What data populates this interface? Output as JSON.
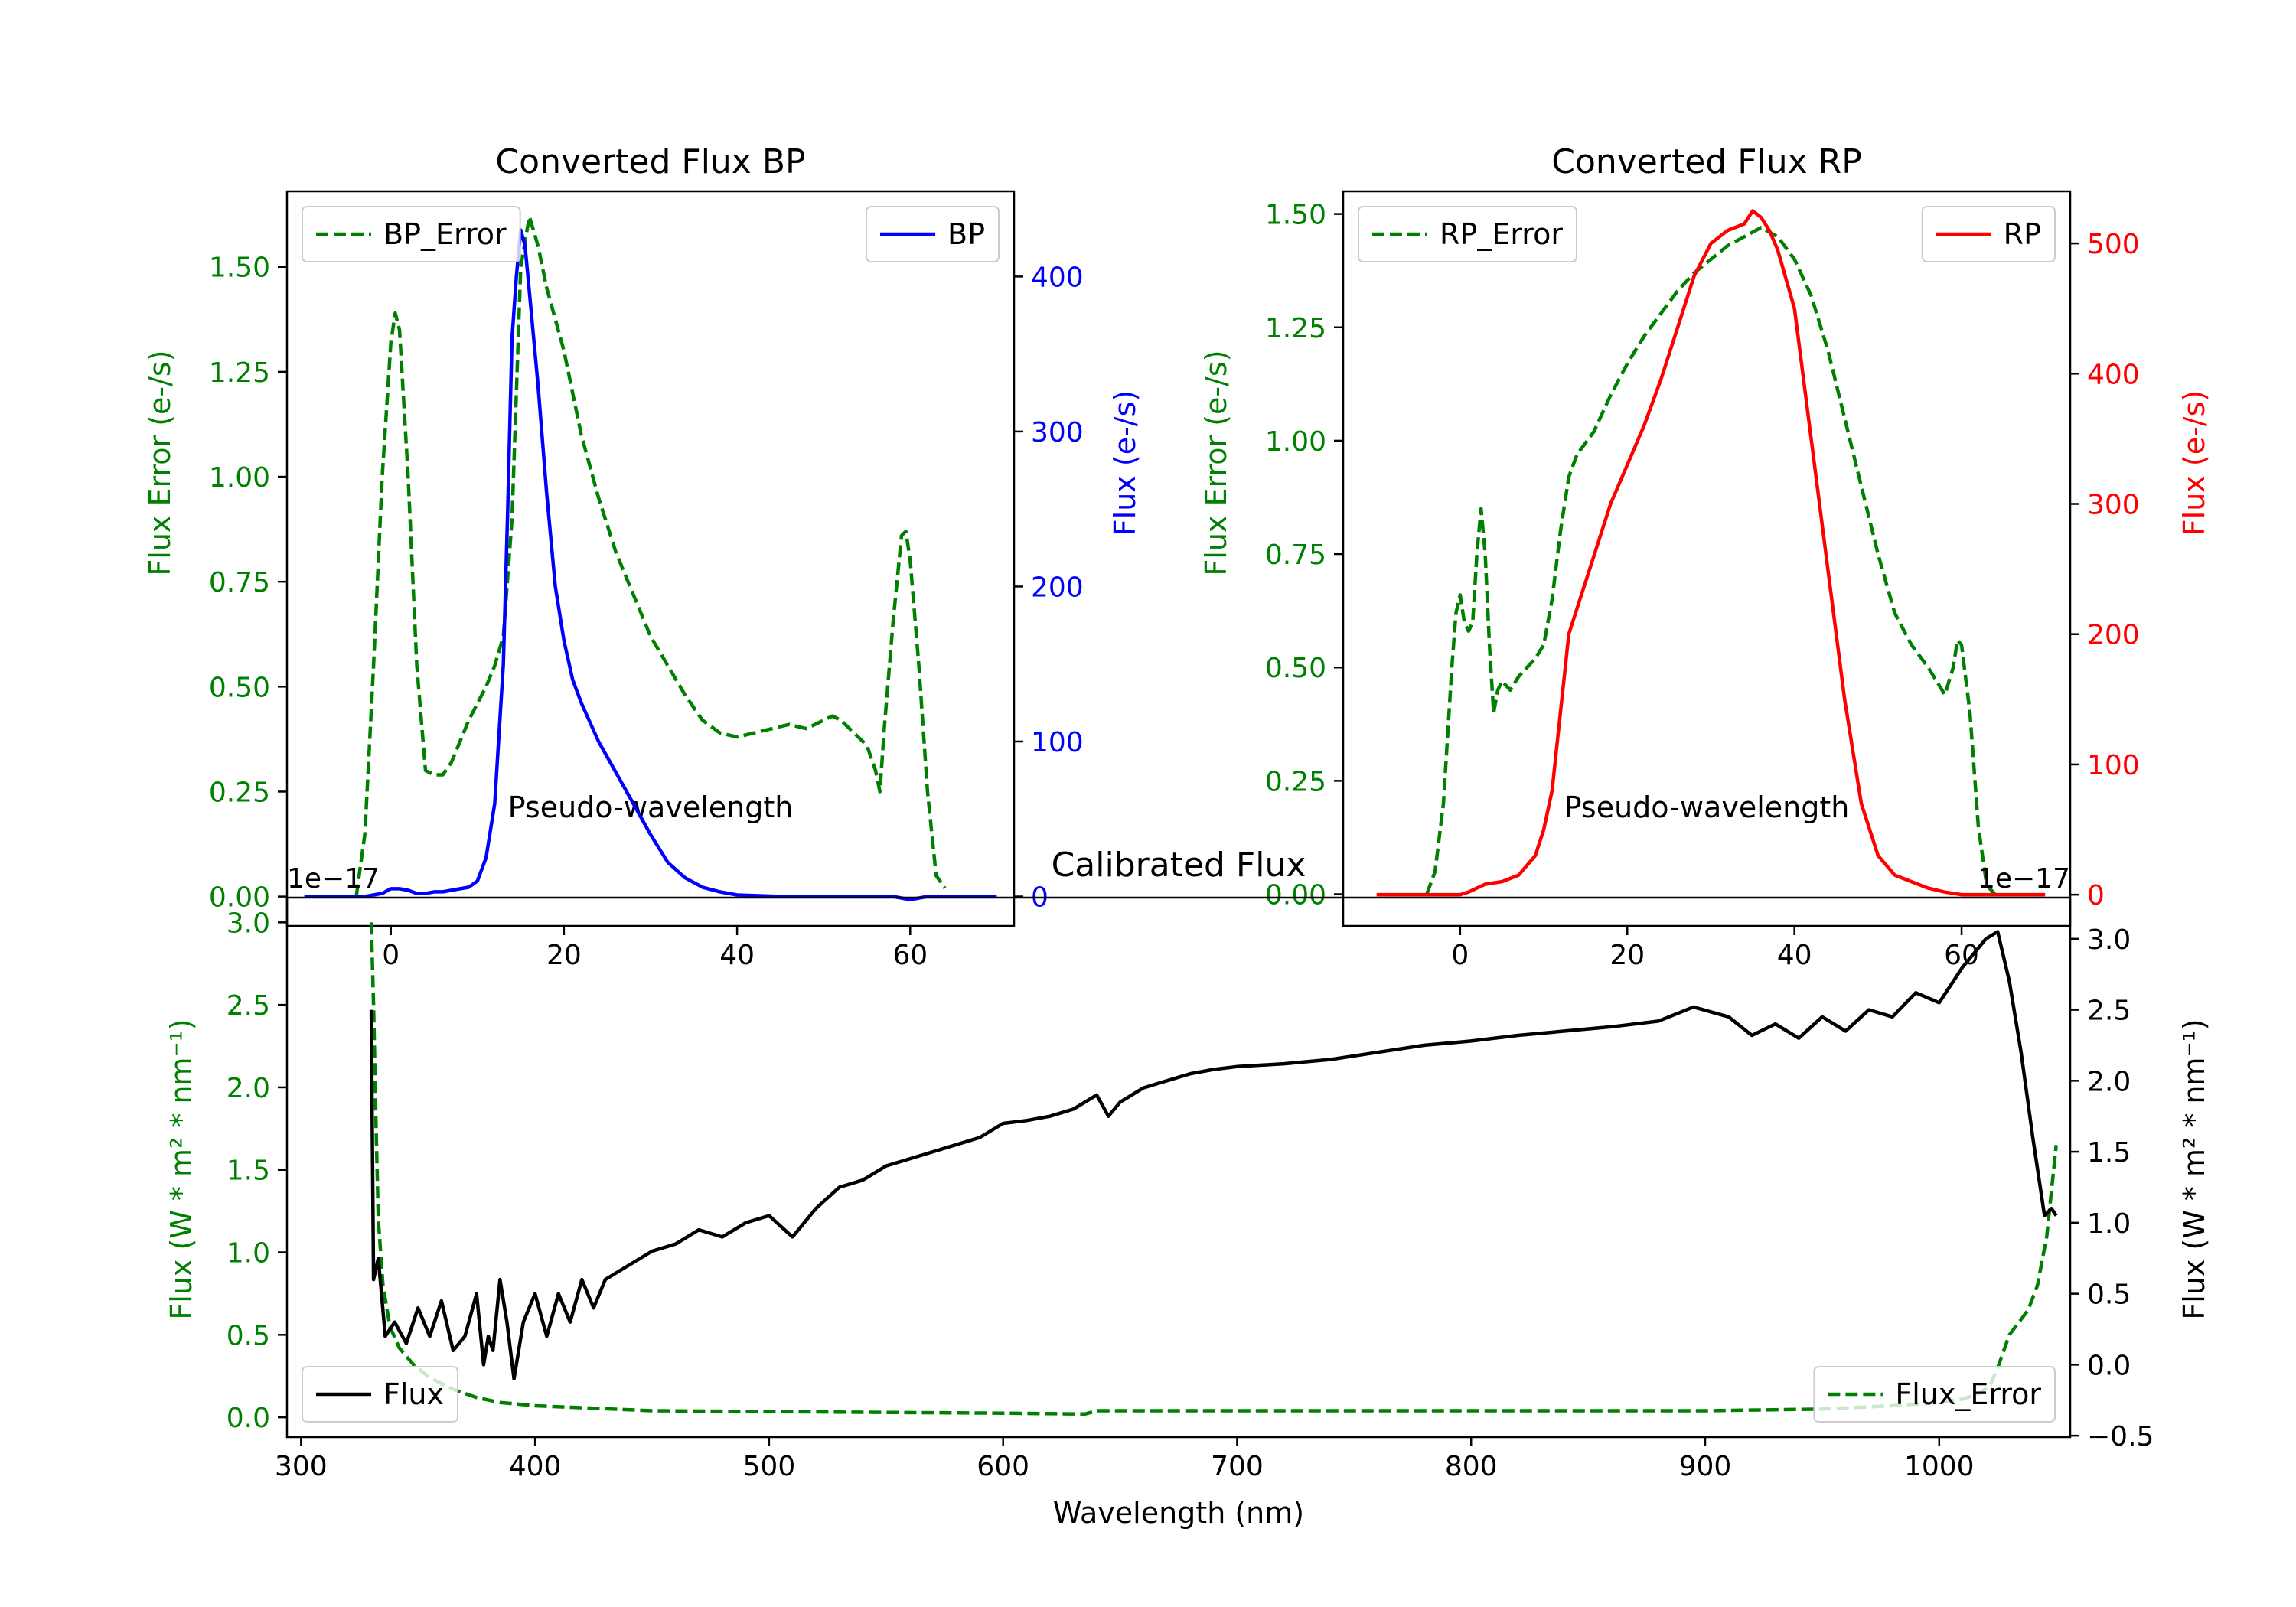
{
  "figure": {
    "background": "#ffffff"
  },
  "chart_data": [
    {
      "id": "bp",
      "type": "line",
      "title": "Converted Flux BP",
      "xlabel": "Pseudo-wavelength",
      "ylabel_left": "Flux Error (e-/s)",
      "ylabel_right": "Flux (e-/s)",
      "xlim": [
        -12,
        72
      ],
      "ylim_left": [
        -0.07,
        1.68
      ],
      "ylim_right": [
        -19,
        455
      ],
      "xticks": [
        0,
        20,
        40,
        60
      ],
      "yticks_left": [
        0.0,
        0.25,
        0.5,
        0.75,
        1.0,
        1.25,
        1.5
      ],
      "yticks_left_labels": [
        "0.00",
        "0.25",
        "0.50",
        "0.75",
        "1.00",
        "1.25",
        "1.50"
      ],
      "yticks_right": [
        0,
        100,
        200,
        300,
        400
      ],
      "yticks_right_labels": [
        "0",
        "100",
        "200",
        "300",
        "400"
      ],
      "left_color": "#008000",
      "right_color": "#0000ff",
      "legend_left": {
        "label": "BP_Error",
        "position": "top-left"
      },
      "legend_right": {
        "label": "BP",
        "position": "top-right"
      },
      "series": [
        {
          "name": "BP_Error",
          "axis": "left",
          "style": "dashed",
          "color": "#008000",
          "x": [
            -4,
            -3,
            -2,
            -1,
            0,
            0.5,
            1,
            2,
            3,
            4,
            5,
            6,
            7,
            8,
            9,
            10,
            11,
            12,
            13,
            14,
            14.5,
            15,
            16,
            17,
            18,
            20,
            22,
            24,
            26,
            28,
            30,
            32,
            34,
            36,
            38,
            40,
            42,
            44,
            46,
            48,
            50,
            51,
            52,
            54,
            55,
            56,
            56.5,
            57,
            58,
            59,
            59.5,
            60,
            61,
            62,
            63,
            64
          ],
          "y": [
            0.0,
            0.15,
            0.55,
            1.0,
            1.32,
            1.39,
            1.35,
            1.0,
            0.55,
            0.3,
            0.29,
            0.29,
            0.32,
            0.37,
            0.42,
            0.46,
            0.5,
            0.55,
            0.62,
            0.9,
            1.2,
            1.5,
            1.62,
            1.55,
            1.45,
            1.3,
            1.1,
            0.95,
            0.82,
            0.72,
            0.62,
            0.55,
            0.48,
            0.42,
            0.39,
            0.38,
            0.39,
            0.4,
            0.41,
            0.4,
            0.42,
            0.43,
            0.42,
            0.38,
            0.36,
            0.3,
            0.25,
            0.4,
            0.65,
            0.86,
            0.87,
            0.8,
            0.55,
            0.25,
            0.05,
            0.02
          ]
        },
        {
          "name": "BP",
          "axis": "right",
          "style": "solid",
          "color": "#0000ff",
          "x": [
            -10,
            -6,
            -3,
            -1,
            0,
            1,
            2,
            3,
            4,
            5,
            6,
            7,
            8,
            9,
            10,
            11,
            12,
            13,
            13.5,
            14,
            14.5,
            15,
            15.5,
            16,
            17,
            18,
            19,
            20,
            21,
            22,
            24,
            26,
            28,
            30,
            32,
            34,
            36,
            38,
            40,
            45,
            50,
            55,
            58,
            60,
            62,
            65,
            70
          ],
          "y": [
            0,
            0,
            0,
            2,
            5,
            5,
            4,
            2,
            2,
            3,
            3,
            4,
            5,
            6,
            10,
            25,
            60,
            150,
            250,
            360,
            400,
            430,
            420,
            390,
            330,
            260,
            200,
            165,
            140,
            125,
            100,
            80,
            60,
            40,
            22,
            12,
            6,
            3,
            1,
            0,
            0,
            0,
            0,
            -2,
            0,
            0,
            0
          ]
        }
      ]
    },
    {
      "id": "rp",
      "type": "line",
      "title": "Converted Flux RP",
      "xlabel": "Pseudo-wavelength",
      "ylabel_left": "Flux Error (e-/s)",
      "ylabel_right": "Flux (e-/s)",
      "xlim": [
        -14,
        73
      ],
      "ylim_left": [
        -0.07,
        1.55
      ],
      "ylim_right": [
        -24,
        540
      ],
      "xticks": [
        0,
        20,
        40,
        60
      ],
      "yticks_left": [
        0.0,
        0.25,
        0.5,
        0.75,
        1.0,
        1.25,
        1.5
      ],
      "yticks_left_labels": [
        "0.00",
        "0.25",
        "0.50",
        "0.75",
        "1.00",
        "1.25",
        "1.50"
      ],
      "yticks_right": [
        0,
        100,
        200,
        300,
        400,
        500
      ],
      "yticks_right_labels": [
        "0",
        "100",
        "200",
        "300",
        "400",
        "500"
      ],
      "left_color": "#008000",
      "right_color": "#ff0000",
      "legend_left": {
        "label": "RP_Error",
        "position": "top-left"
      },
      "legend_right": {
        "label": "RP",
        "position": "top-right"
      },
      "series": [
        {
          "name": "RP_Error",
          "axis": "left",
          "style": "dashed",
          "color": "#008000",
          "x": [
            -4,
            -3,
            -2,
            -1,
            -0.5,
            0,
            0.5,
            1,
            1.5,
            2,
            2.5,
            3,
            3.5,
            4,
            4.5,
            5,
            6,
            7,
            8,
            9,
            10,
            11,
            12,
            13,
            14,
            16,
            18,
            20,
            22,
            24,
            26,
            28,
            30,
            32,
            34,
            36,
            38,
            40,
            42,
            44,
            46,
            48,
            50,
            52,
            54,
            56,
            57,
            58,
            59,
            59.5,
            60,
            61,
            62,
            63,
            64
          ],
          "y": [
            0.0,
            0.05,
            0.2,
            0.5,
            0.62,
            0.66,
            0.6,
            0.58,
            0.6,
            0.75,
            0.85,
            0.75,
            0.55,
            0.4,
            0.45,
            0.47,
            0.45,
            0.48,
            0.5,
            0.52,
            0.55,
            0.65,
            0.8,
            0.92,
            0.97,
            1.02,
            1.1,
            1.17,
            1.23,
            1.28,
            1.33,
            1.37,
            1.4,
            1.43,
            1.45,
            1.47,
            1.45,
            1.4,
            1.32,
            1.2,
            1.05,
            0.9,
            0.75,
            0.62,
            0.55,
            0.5,
            0.47,
            0.44,
            0.5,
            0.56,
            0.55,
            0.4,
            0.15,
            0.02,
            0.0
          ]
        },
        {
          "name": "RP",
          "axis": "right",
          "style": "solid",
          "color": "#ff0000",
          "x": [
            -10,
            -6,
            -3,
            -1,
            0,
            1,
            2,
            3,
            5,
            7,
            9,
            10,
            11,
            12,
            12.5,
            13,
            14,
            16,
            18,
            20,
            22,
            24,
            26,
            28,
            30,
            32,
            34,
            35,
            36,
            37,
            38,
            40,
            42,
            44,
            46,
            48,
            50,
            52,
            54,
            56,
            58,
            60,
            62,
            64,
            66,
            70
          ],
          "y": [
            0,
            0,
            0,
            0,
            0,
            2,
            5,
            8,
            10,
            15,
            30,
            50,
            80,
            140,
            170,
            200,
            220,
            260,
            300,
            330,
            360,
            395,
            435,
            475,
            500,
            510,
            515,
            525,
            520,
            510,
            495,
            450,
            350,
            250,
            150,
            70,
            30,
            15,
            10,
            5,
            2,
            0,
            0,
            0,
            0,
            0
          ]
        }
      ]
    },
    {
      "id": "calibrated",
      "type": "line",
      "title": "Calibrated Flux",
      "xlabel": "Wavelength (nm)",
      "ylabel_left": "Flux (W * m² * nm⁻¹)",
      "ylabel_right": "Flux (W * m² * nm⁻¹)",
      "offset_left": "1e−17",
      "offset_right": "1e−17",
      "xlim": [
        294,
        1056
      ],
      "ylim_left": [
        -0.12,
        3.15
      ],
      "ylim_right": [
        -0.51,
        3.29
      ],
      "xticks": [
        300,
        400,
        500,
        600,
        700,
        800,
        900,
        1000
      ],
      "yticks_left": [
        0.0,
        0.5,
        1.0,
        1.5,
        2.0,
        2.5,
        3.0
      ],
      "yticks_left_labels": [
        "0.0",
        "0.5",
        "1.0",
        "1.5",
        "2.0",
        "2.5",
        "3.0"
      ],
      "yticks_right": [
        -0.5,
        0.0,
        0.5,
        1.0,
        1.5,
        2.0,
        2.5,
        3.0
      ],
      "yticks_right_labels": [
        "−0.5",
        "0.0",
        "0.5",
        "1.0",
        "1.5",
        "2.0",
        "2.5",
        "3.0"
      ],
      "left_color": "#008000",
      "right_color": "#000000",
      "legend_left": {
        "label": "Flux",
        "position": "bottom-left"
      },
      "legend_right": {
        "label": "Flux_Error",
        "position": "bottom-right"
      },
      "series": [
        {
          "name": "Flux_Error",
          "axis": "left",
          "style": "dashed",
          "color": "#008000",
          "x": [
            330,
            331,
            332,
            333,
            335,
            338,
            342,
            348,
            355,
            365,
            375,
            385,
            400,
            450,
            500,
            550,
            600,
            635,
            640,
            700,
            800,
            900,
            950,
            980,
            1000,
            1010,
            1018,
            1022,
            1025,
            1030,
            1038,
            1042,
            1046,
            1050
          ],
          "y": [
            3.0,
            2.5,
            1.8,
            1.2,
            0.8,
            0.55,
            0.42,
            0.32,
            0.24,
            0.17,
            0.12,
            0.09,
            0.07,
            0.04,
            0.035,
            0.03,
            0.025,
            0.02,
            0.04,
            0.04,
            0.04,
            0.04,
            0.05,
            0.07,
            0.09,
            0.11,
            0.15,
            0.2,
            0.3,
            0.5,
            0.65,
            0.8,
            1.1,
            1.65
          ]
        },
        {
          "name": "Flux",
          "axis": "right",
          "style": "solid",
          "color": "#000000",
          "x": [
            330,
            331,
            333,
            336,
            340,
            345,
            350,
            355,
            360,
            365,
            370,
            375,
            378,
            380,
            382,
            385,
            388,
            391,
            395,
            400,
            405,
            410,
            415,
            420,
            425,
            430,
            440,
            450,
            460,
            470,
            480,
            490,
            500,
            510,
            520,
            530,
            540,
            550,
            560,
            570,
            580,
            590,
            600,
            610,
            620,
            630,
            640,
            645,
            650,
            660,
            670,
            680,
            690,
            700,
            720,
            740,
            760,
            780,
            800,
            820,
            840,
            860,
            880,
            895,
            910,
            920,
            930,
            940,
            950,
            960,
            970,
            980,
            990,
            1000,
            1010,
            1020,
            1025,
            1030,
            1035,
            1040,
            1045,
            1048,
            1050
          ],
          "y": [
            2.5,
            0.6,
            0.75,
            0.2,
            0.3,
            0.15,
            0.4,
            0.2,
            0.45,
            0.1,
            0.2,
            0.5,
            0.0,
            0.2,
            0.1,
            0.6,
            0.3,
            -0.1,
            0.3,
            0.5,
            0.2,
            0.5,
            0.3,
            0.6,
            0.4,
            0.6,
            0.7,
            0.8,
            0.85,
            0.95,
            0.9,
            1.0,
            1.05,
            0.9,
            1.1,
            1.25,
            1.3,
            1.4,
            1.45,
            1.5,
            1.55,
            1.6,
            1.7,
            1.72,
            1.75,
            1.8,
            1.9,
            1.75,
            1.85,
            1.95,
            2.0,
            2.05,
            2.08,
            2.1,
            2.12,
            2.15,
            2.2,
            2.25,
            2.28,
            2.32,
            2.35,
            2.38,
            2.42,
            2.52,
            2.45,
            2.32,
            2.4,
            2.3,
            2.45,
            2.35,
            2.5,
            2.45,
            2.62,
            2.55,
            2.8,
            3.0,
            3.05,
            2.7,
            2.2,
            1.6,
            1.05,
            1.1,
            1.05
          ]
        }
      ]
    }
  ]
}
